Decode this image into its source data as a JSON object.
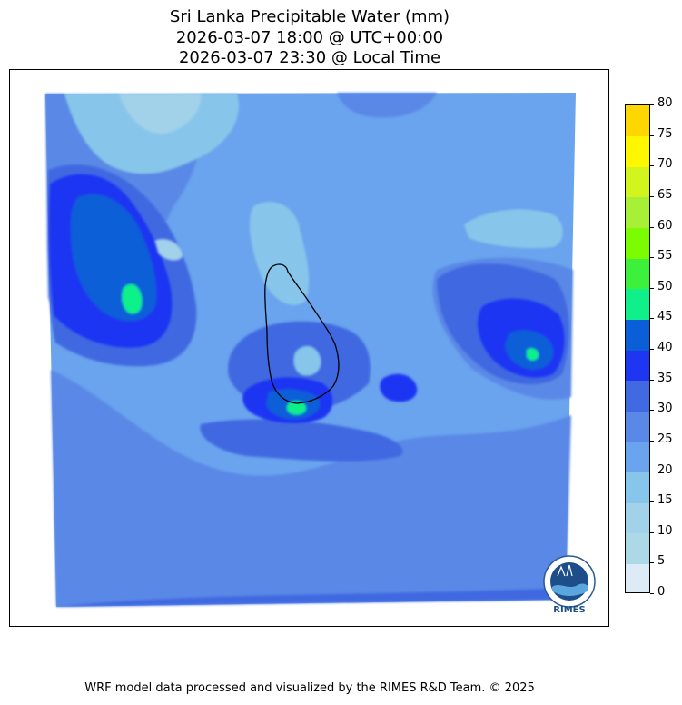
{
  "header": {
    "title_line1": "Sri Lanka Precipitable Water (mm)",
    "title_line2": "2026-03-07 18:00 @ UTC+00:00",
    "title_line3": "2026-03-07 23:30 @ Local Time"
  },
  "colorbar": {
    "levels": [
      "0",
      "5",
      "10",
      "15",
      "20",
      "25",
      "30",
      "35",
      "40",
      "45",
      "50",
      "55",
      "60",
      "65",
      "70",
      "75",
      "80"
    ],
    "colors": [
      "#dcebf6",
      "#add8e6",
      "#a2d2ea",
      "#87c6ea",
      "#6aa3ee",
      "#5a88e6",
      "#4169e1",
      "#1e35f2",
      "#0a5fd8",
      "#0ff08a",
      "#3cf03c",
      "#7cfc00",
      "#a8f038",
      "#d2f51e",
      "#fff700",
      "#ffd700"
    ]
  },
  "footer": {
    "credit": "WRF model data processed and visualized by the RIMES R&D Team. © 2025"
  },
  "logo": {
    "text": "RIMES"
  }
}
